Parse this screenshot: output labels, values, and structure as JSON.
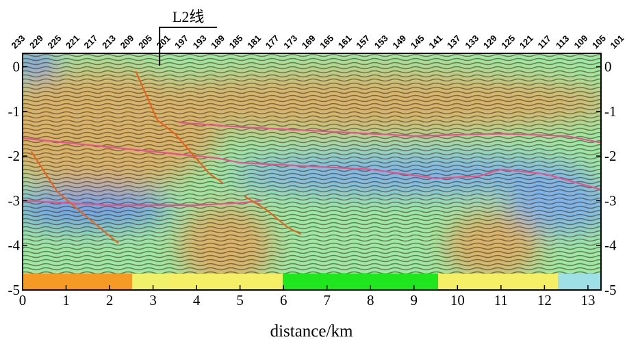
{
  "chart_data": {
    "type": "heatmap",
    "title": "",
    "xlabel": "distance/km",
    "ylabel": "",
    "xlim": [
      0,
      13.3
    ],
    "ylim": [
      -5,
      0.3
    ],
    "x_ticks": [
      0,
      1,
      2,
      3,
      4,
      5,
      6,
      7,
      8,
      9,
      10,
      11,
      12,
      13
    ],
    "y_ticks": [
      0,
      -1,
      -2,
      -3,
      -4,
      -5
    ],
    "y_ticks_right": [
      0,
      -1,
      -2,
      -3,
      -4,
      -5
    ],
    "cdp_labels": [
      "233",
      "229",
      "225",
      "221",
      "217",
      "213",
      "209",
      "205",
      "201",
      "197",
      "193",
      "189",
      "185",
      "181",
      "177",
      "173",
      "169",
      "165",
      "161",
      "157",
      "153",
      "149",
      "145",
      "141",
      "137",
      "133",
      "129",
      "125",
      "121",
      "117",
      "113",
      "109",
      "105",
      "101"
    ],
    "cross_line": {
      "label": "L2线",
      "x": 3.15
    },
    "colors": {
      "low": "#5b8ef0",
      "mid_low": "#9fd6f2",
      "mid": "#3ee63e",
      "mid_high": "#f1f06a",
      "high": "#f08a1e"
    },
    "horizons": [
      {
        "color": "#e2558e",
        "points": [
          [
            3.6,
            -1.25
          ],
          [
            5,
            -1.35
          ],
          [
            7,
            -1.45
          ],
          [
            9,
            -1.55
          ],
          [
            11,
            -1.5
          ],
          [
            12.5,
            -1.55
          ],
          [
            13.3,
            -1.7
          ]
        ]
      },
      {
        "color": "#e2558e",
        "points": [
          [
            0,
            -1.6
          ],
          [
            1,
            -1.7
          ],
          [
            2,
            -1.8
          ],
          [
            3,
            -1.9
          ],
          [
            4,
            -2.0
          ],
          [
            4.5,
            -2.05
          ],
          [
            5,
            -2.15
          ],
          [
            6,
            -2.2
          ],
          [
            8,
            -2.3
          ],
          [
            9.5,
            -2.5
          ],
          [
            10.5,
            -2.45
          ],
          [
            11,
            -2.3
          ],
          [
            12,
            -2.4
          ],
          [
            13.3,
            -2.75
          ]
        ]
      },
      {
        "color": "#e2558e",
        "points": [
          [
            0,
            -3.0
          ],
          [
            1,
            -3.05
          ],
          [
            2,
            -3.1
          ],
          [
            3,
            -3.1
          ],
          [
            4,
            -3.1
          ],
          [
            5,
            -3.05
          ],
          [
            5.5,
            -3.0
          ]
        ]
      }
    ],
    "faults": [
      {
        "color": "#e8601a",
        "points": [
          [
            2.6,
            -0.1
          ],
          [
            3.1,
            -1.2
          ],
          [
            3.5,
            -1.5
          ],
          [
            4.3,
            -2.4
          ],
          [
            4.6,
            -2.6
          ]
        ]
      },
      {
        "color": "#e8601a",
        "points": [
          [
            0.2,
            -1.9
          ],
          [
            0.8,
            -2.8
          ],
          [
            1.4,
            -3.3
          ],
          [
            2.2,
            -3.95
          ]
        ]
      },
      {
        "color": "#e8601a",
        "points": [
          [
            5.1,
            -2.9
          ],
          [
            5.6,
            -3.2
          ],
          [
            6.1,
            -3.6
          ],
          [
            6.4,
            -3.75
          ]
        ]
      }
    ],
    "grid": false
  }
}
